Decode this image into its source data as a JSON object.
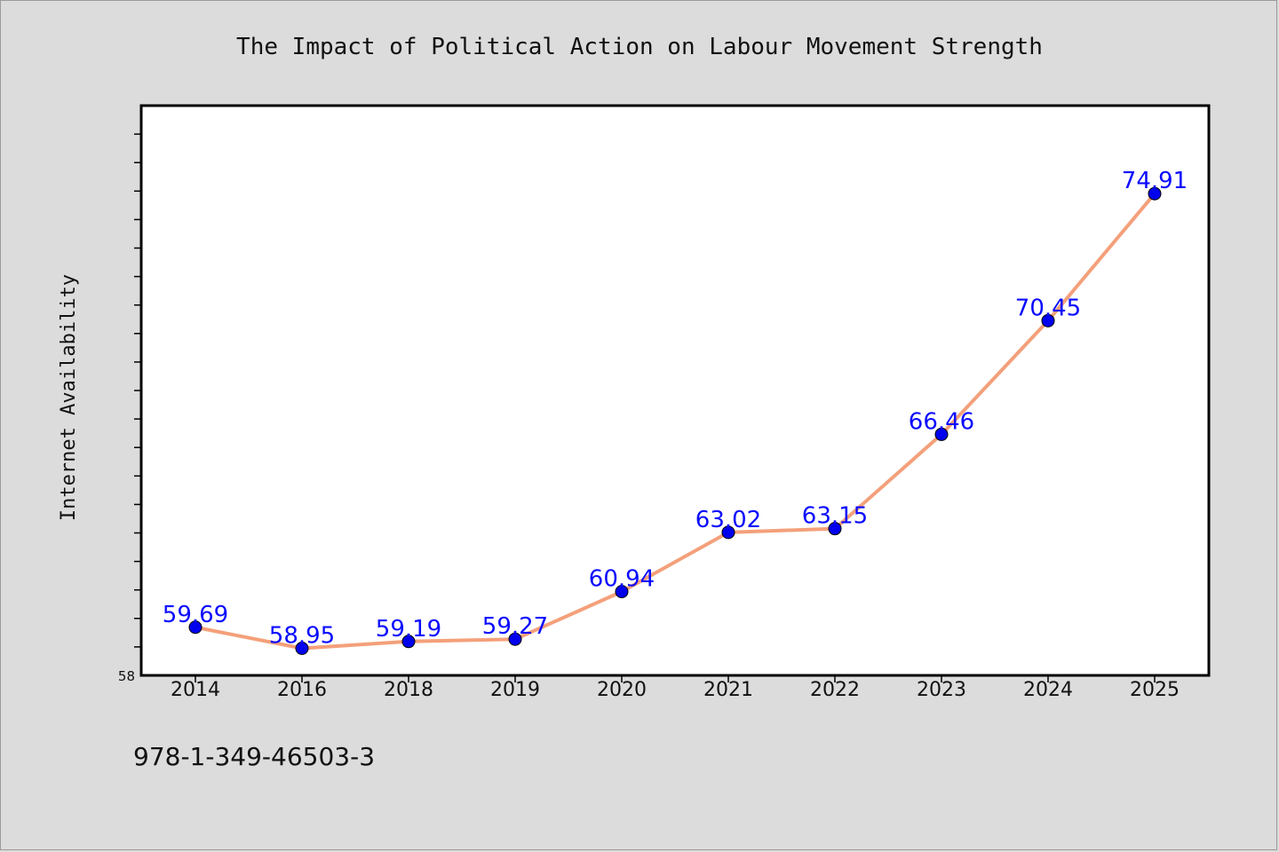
{
  "chart_data": {
    "type": "line",
    "title": "The Impact of Political Action on Labour Movement Strength",
    "xlabel": "",
    "ylabel": "Internet Availability",
    "categories": [
      "2014",
      "2016",
      "2018",
      "2019",
      "2020",
      "2021",
      "2022",
      "2023",
      "2024",
      "2025"
    ],
    "values": [
      59.69,
      58.95,
      59.19,
      59.27,
      60.94,
      63.02,
      63.15,
      66.46,
      70.45,
      74.91
    ],
    "data_labels": [
      "59.69",
      "58.95",
      "59.19",
      "59.27",
      "60.94",
      "63.02",
      "63.15",
      "66.46",
      "70.45",
      "74.91"
    ],
    "ylim": [
      58,
      78
    ],
    "y_tick_labels": [
      "58"
    ],
    "grid": false,
    "legend": "none",
    "colors": {
      "line": "#f4a07a",
      "marker": "#0000ee",
      "data_label": "#0a0aff",
      "background": "#dcdcdc",
      "plot_area": "#ffffff"
    }
  },
  "footer": {
    "isbn": "978-1-349-46503-3"
  }
}
